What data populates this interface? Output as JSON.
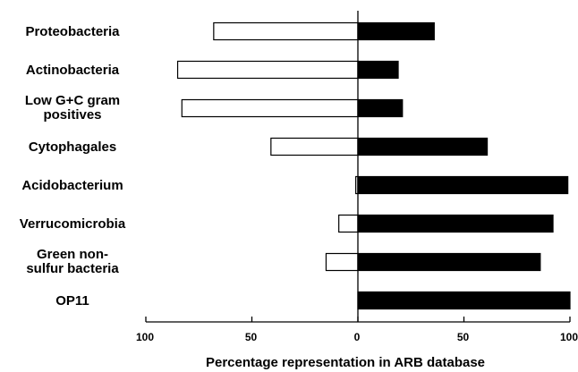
{
  "chart_data": {
    "type": "bar",
    "orientation": "horizontal",
    "categories": [
      [
        "Proteobacteria"
      ],
      [
        "Actinobacteria"
      ],
      [
        "Low G+C gram",
        "positives"
      ],
      [
        "Cytophagales"
      ],
      [
        "Acidobacterium"
      ],
      [
        "Verrucomicrobia"
      ],
      [
        "Green non-",
        "sulfur bacteria"
      ],
      [
        "OP11"
      ]
    ],
    "series": [
      {
        "fill": "#ffffff",
        "stroke": "#000000",
        "direction": "left",
        "values": [
          68,
          85,
          83,
          41,
          1,
          9,
          15,
          0
        ]
      },
      {
        "fill": "#000000",
        "stroke": "#000000",
        "direction": "right",
        "values": [
          36,
          19,
          21,
          61,
          99,
          92,
          86,
          100
        ]
      }
    ],
    "xlabel": "Percentage representation in ARB database",
    "ticks": [
      {
        "value": -100,
        "label": "100"
      },
      {
        "value": -50,
        "label": "50"
      },
      {
        "value": 0,
        "label": "0"
      },
      {
        "value": 50,
        "label": "50"
      },
      {
        "value": 100,
        "label": "100"
      }
    ],
    "xlim": [
      -100,
      100
    ],
    "grid": false,
    "legend": "none"
  }
}
